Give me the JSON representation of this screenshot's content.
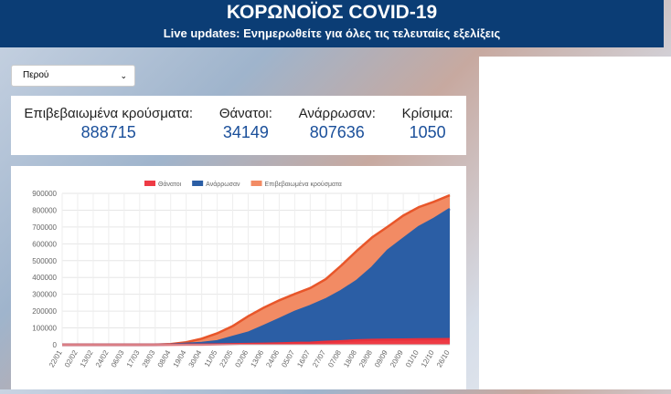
{
  "header": {
    "title": "ΚΟΡΩΝΟΪΟΣ COVID-19",
    "subtitle": "Live updates: Ενημερωθείτε για όλες τις τελευταίες εξελίξεις"
  },
  "dropdown": {
    "selected": "Περού"
  },
  "stats": [
    {
      "label": "Επιβεβαιωμένα κρούσματα:",
      "value": "888715"
    },
    {
      "label": "Θάνατοι:",
      "value": "34149"
    },
    {
      "label": "Ανάρρωσαν:",
      "value": "807636"
    },
    {
      "label": "Κρίσιμα:",
      "value": "1050"
    }
  ],
  "chart_data": {
    "type": "area",
    "categories": [
      "22/01",
      "02/02",
      "13/02",
      "24/02",
      "06/03",
      "17/03",
      "28/03",
      "08/04",
      "19/04",
      "30/04",
      "11/05",
      "22/05",
      "02/06",
      "13/06",
      "24/06",
      "05/07",
      "16/07",
      "27/07",
      "07/08",
      "18/08",
      "29/08",
      "09/09",
      "20/09",
      "01/10",
      "12/10",
      "26/10"
    ],
    "series": [
      {
        "name": "Θάνατοι",
        "color": "#ee3b45",
        "values": [
          0,
          0,
          0,
          0,
          0,
          0,
          30,
          120,
          500,
          900,
          2000,
          3200,
          4700,
          6300,
          8400,
          10600,
          12400,
          17800,
          21100,
          26300,
          29000,
          30300,
          31500,
          32700,
          33400,
          34149
        ]
      },
      {
        "name": "Ανάρρωσαν",
        "color": "#2b5ea5",
        "values": [
          0,
          0,
          0,
          0,
          0,
          0,
          0,
          1500,
          6000,
          11000,
          21000,
          47000,
          72000,
          112000,
          153000,
          196000,
          230000,
          270000,
          320000,
          380000,
          460000,
          560000,
          630000,
          700000,
          750000,
          807636
        ]
      },
      {
        "name": "Επιβεβαιωμένα κρούσματα",
        "color": "#f28b64",
        "values": [
          0,
          0,
          0,
          0,
          0,
          200,
          1000,
          4000,
          15000,
          36000,
          68000,
          111000,
          170000,
          220000,
          264000,
          302000,
          337000,
          390000,
          471000,
          558000,
          639000,
          702000,
          768000,
          818000,
          851000,
          888715
        ]
      }
    ],
    "ylim": [
      0,
      900000
    ],
    "yticks": [
      0,
      100000,
      200000,
      300000,
      400000,
      500000,
      600000,
      700000,
      800000,
      900000
    ],
    "grid": true
  }
}
